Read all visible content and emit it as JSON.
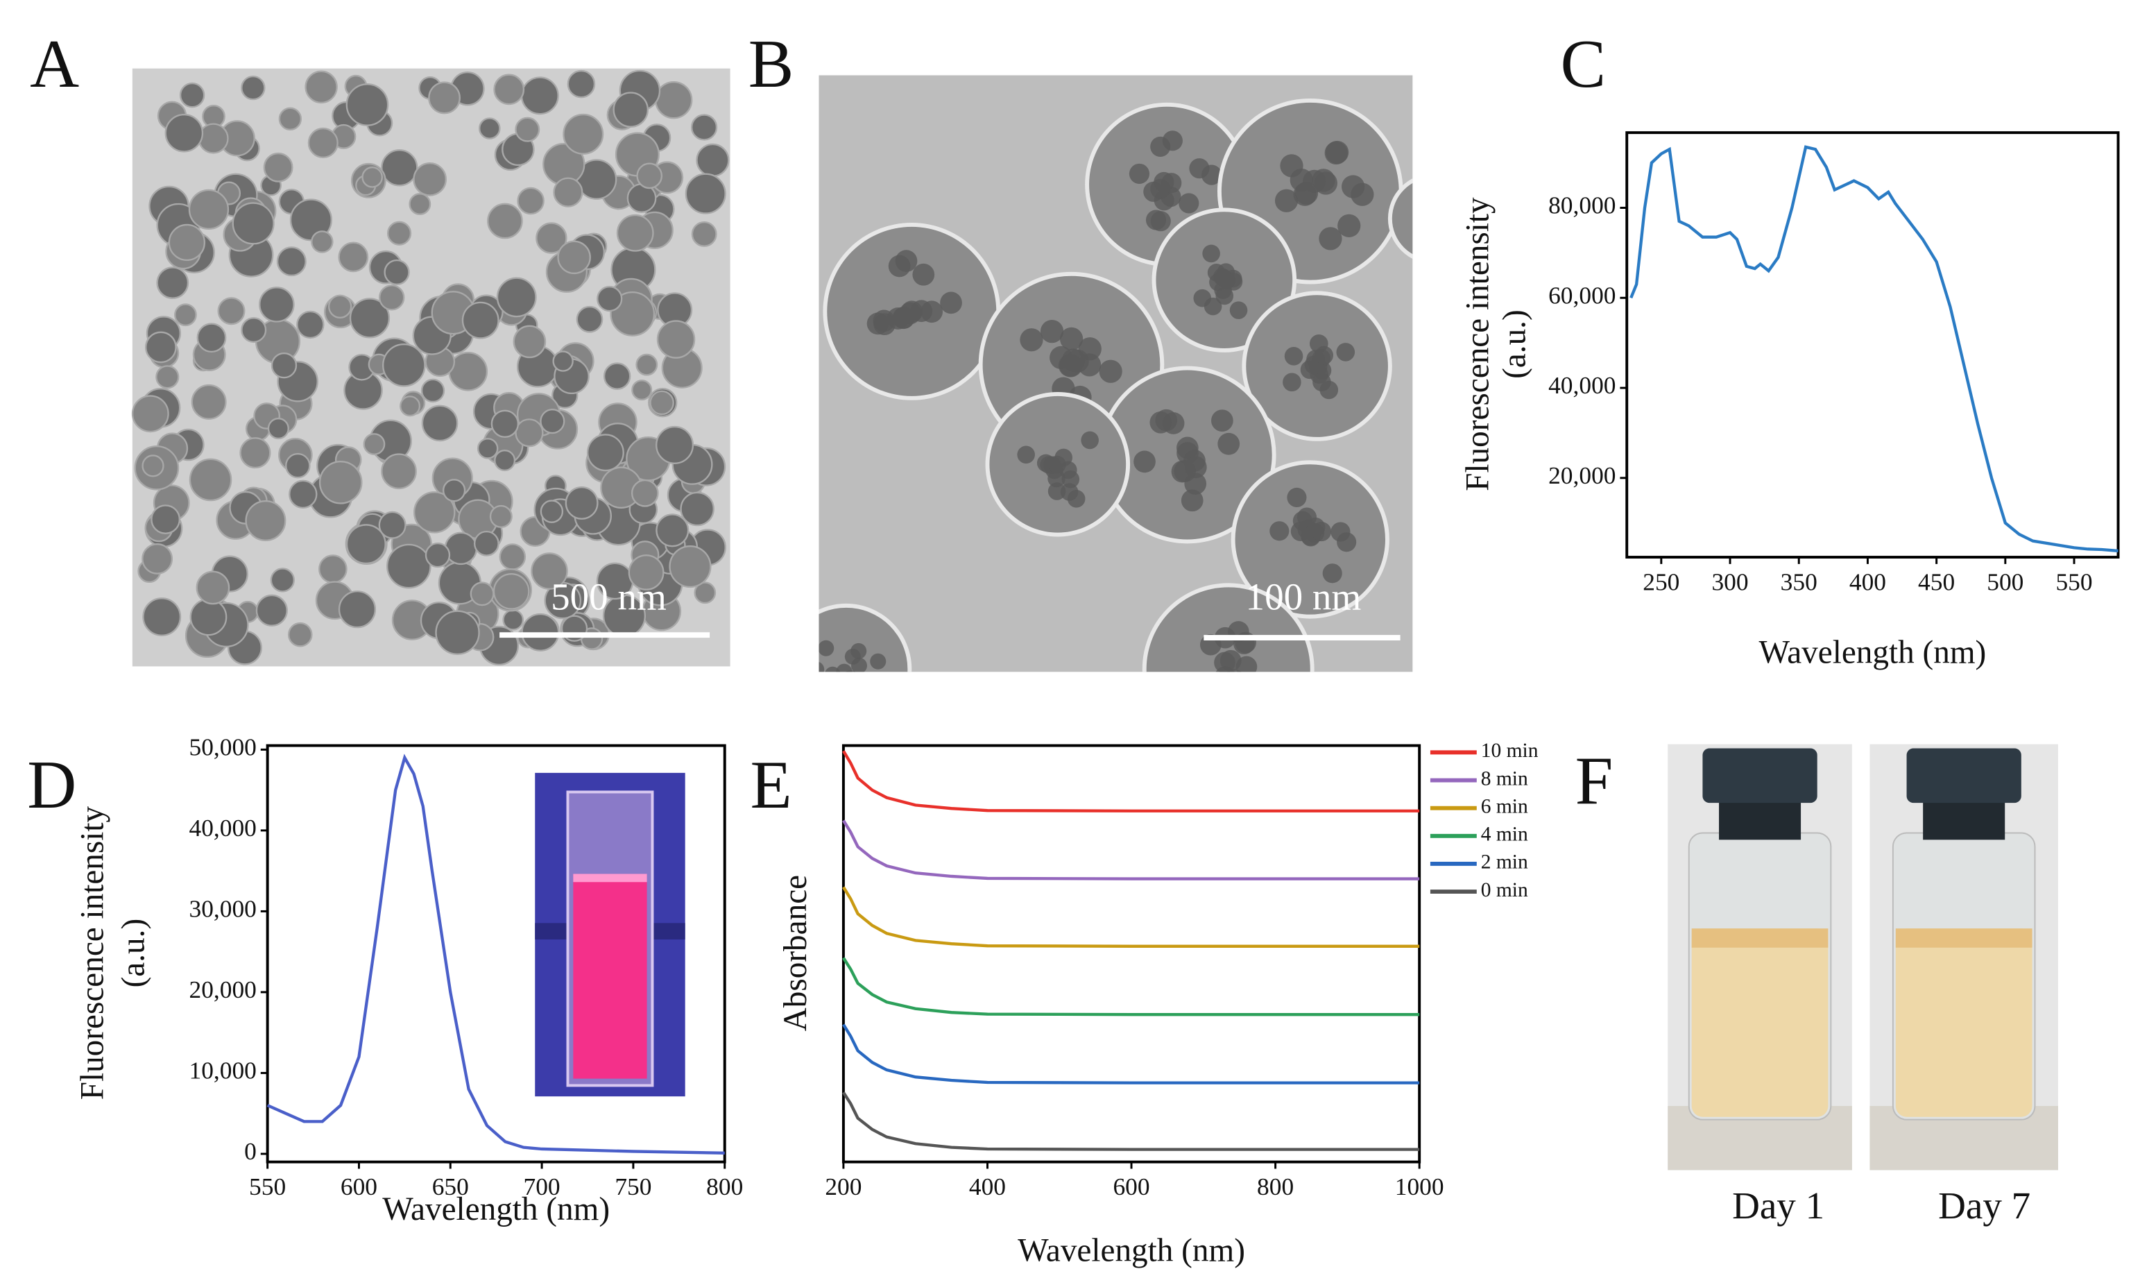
{
  "panels": {
    "A": {
      "letter": "A",
      "scale_bar": "500 nm"
    },
    "B": {
      "letter": "B",
      "scale_bar": "100 nm"
    },
    "F": {
      "letter": "F",
      "labels": [
        "Day 1",
        "Day 7"
      ]
    }
  },
  "chart_data": [
    {
      "type": "line",
      "panel": "C",
      "xlabel": "Wavelength (nm)",
      "ylabel": [
        "Fluorescence intensity",
        "(a.u.)"
      ],
      "x": [
        228,
        232,
        238,
        243,
        250,
        256,
        263,
        270,
        280,
        290,
        300,
        305,
        312,
        318,
        322,
        328,
        335,
        345,
        355,
        362,
        370,
        376,
        383,
        390,
        400,
        408,
        415,
        420,
        430,
        440,
        450,
        460,
        470,
        480,
        490,
        500,
        510,
        520,
        530,
        540,
        550,
        560,
        570,
        582
      ],
      "series": [
        {
          "color": "#2a7bc4",
          "values": [
            60000,
            63000,
            80000,
            90000,
            92000,
            93000,
            77000,
            76000,
            73500,
            73500,
            74500,
            73000,
            67000,
            66500,
            67500,
            66000,
            69000,
            80000,
            93500,
            93000,
            89000,
            84000,
            85000,
            86000,
            84500,
            82000,
            83500,
            81000,
            77000,
            73000,
            68000,
            58000,
            45000,
            32000,
            20000,
            10000,
            7500,
            6000,
            5500,
            5000,
            4500,
            4200,
            4100,
            3800
          ]
        }
      ],
      "xlim": [
        225,
        582
      ],
      "ylim": [
        2400,
        96700
      ],
      "xticks": [
        250,
        300,
        350,
        400,
        450,
        500,
        550
      ],
      "yticks": [
        {
          "value": 20000,
          "label": "20,000"
        },
        {
          "value": 40000,
          "label": "40,000"
        },
        {
          "value": 60000,
          "label": "60,000"
        },
        {
          "value": 80000,
          "label": "80,000"
        }
      ]
    },
    {
      "type": "line",
      "panel": "D",
      "xlabel": "Wavelength (nm)",
      "ylabel": [
        "Fluorescence intensity",
        "(a.u.)"
      ],
      "x": [
        550,
        560,
        570,
        580,
        590,
        600,
        610,
        620,
        625,
        630,
        635,
        640,
        650,
        660,
        670,
        680,
        690,
        700,
        750,
        800
      ],
      "series": [
        {
          "color": "#4a5fc9",
          "values": [
            6000,
            5000,
            4000,
            4000,
            6000,
            12000,
            28000,
            45000,
            49000,
            47000,
            43000,
            35000,
            20000,
            8000,
            3500,
            1500,
            800,
            600,
            300,
            100
          ]
        }
      ],
      "xlim": [
        550,
        800
      ],
      "ylim": [
        -1000,
        50500
      ],
      "xticks": [
        550,
        600,
        650,
        700,
        750,
        800
      ],
      "yticks": [
        0,
        {
          "value": 10000,
          "label": "10,000"
        },
        {
          "value": 20000,
          "label": "20,000"
        },
        {
          "value": 30000,
          "label": "30,000"
        },
        {
          "value": 40000,
          "label": "40,000"
        },
        {
          "value": 50000,
          "label": "50,000"
        }
      ]
    },
    {
      "type": "line",
      "panel": "E",
      "xlabel": "Wavelength (nm)",
      "ylabel": [
        "Absorbance"
      ],
      "x": [
        200,
        210,
        220,
        240,
        260,
        300,
        350,
        400,
        600,
        800,
        1000
      ],
      "series": [
        {
          "name": "10 min",
          "color": "#e8302a",
          "values": [
            0.987,
            0.958,
            0.922,
            0.893,
            0.875,
            0.857,
            0.849,
            0.844,
            0.843,
            0.843,
            0.843
          ]
        },
        {
          "name": "8 min",
          "color": "#9467bd",
          "values": [
            0.82,
            0.792,
            0.757,
            0.729,
            0.711,
            0.694,
            0.686,
            0.681,
            0.68,
            0.68,
            0.68
          ]
        },
        {
          "name": "6 min",
          "color": "#c99a12",
          "values": [
            0.66,
            0.632,
            0.596,
            0.568,
            0.549,
            0.532,
            0.524,
            0.519,
            0.518,
            0.518,
            0.518
          ]
        },
        {
          "name": "4 min",
          "color": "#2ca05a",
          "values": [
            0.49,
            0.463,
            0.429,
            0.402,
            0.384,
            0.368,
            0.359,
            0.355,
            0.354,
            0.354,
            0.354
          ]
        },
        {
          "name": "2 min",
          "color": "#2868c0",
          "values": [
            0.33,
            0.302,
            0.267,
            0.239,
            0.221,
            0.204,
            0.196,
            0.191,
            0.19,
            0.19,
            0.19
          ]
        },
        {
          "name": "0 min",
          "color": "#555555",
          "values": [
            0.167,
            0.14,
            0.105,
            0.078,
            0.06,
            0.044,
            0.035,
            0.031,
            0.03,
            0.03,
            0.03
          ]
        }
      ],
      "xlim": [
        200,
        1000
      ],
      "ylim": [
        0,
        1
      ],
      "xticks": [
        200,
        400,
        600,
        800,
        1000
      ]
    }
  ]
}
